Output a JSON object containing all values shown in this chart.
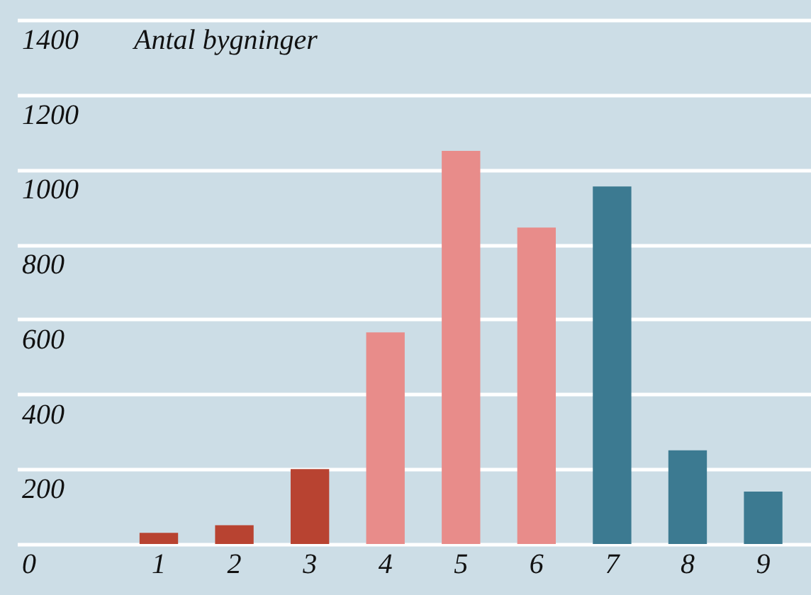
{
  "chart_data": {
    "type": "bar",
    "ylabel": "Antal bygninger",
    "categories": [
      "1",
      "2",
      "3",
      "4",
      "5",
      "6",
      "7",
      "8",
      "9"
    ],
    "values": [
      30,
      50,
      200,
      565,
      1050,
      845,
      955,
      250,
      140
    ],
    "colors": [
      "#b84331",
      "#b84331",
      "#b84331",
      "#e88c8a",
      "#e88c8a",
      "#e88c8a",
      "#3c7a91",
      "#3c7a91",
      "#3c7a91"
    ],
    "ylim": [
      0,
      1400
    ],
    "yticks": [
      0,
      200,
      400,
      600,
      800,
      1000,
      1200,
      1400
    ],
    "grid": "y"
  }
}
